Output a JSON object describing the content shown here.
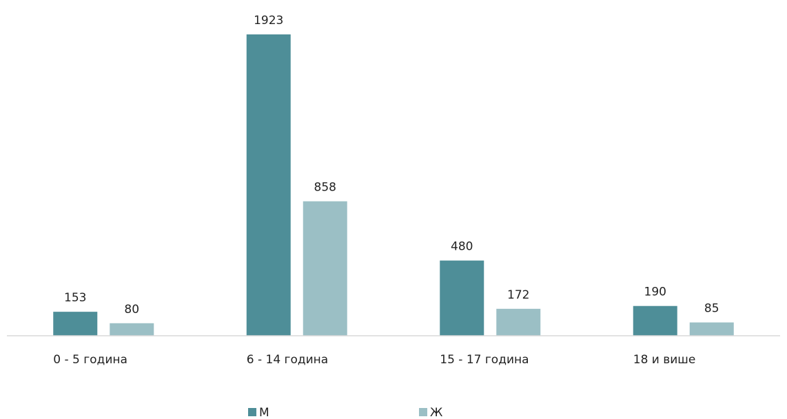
{
  "chart_data": {
    "type": "bar",
    "categories": [
      "0 - 5 година",
      "6 - 14 година",
      "15 - 17 година",
      "18 и више"
    ],
    "series": [
      {
        "name": "М",
        "values": [
          153,
          1923,
          480,
          190
        ],
        "color": "#4E8E98"
      },
      {
        "name": "Ж",
        "values": [
          80,
          858,
          172,
          85
        ],
        "color": "#9BBFC5"
      }
    ],
    "title": "",
    "xlabel": "",
    "ylabel": "",
    "ylim": [
      0,
      2000
    ],
    "grid": false,
    "legend_position": "bottom"
  }
}
